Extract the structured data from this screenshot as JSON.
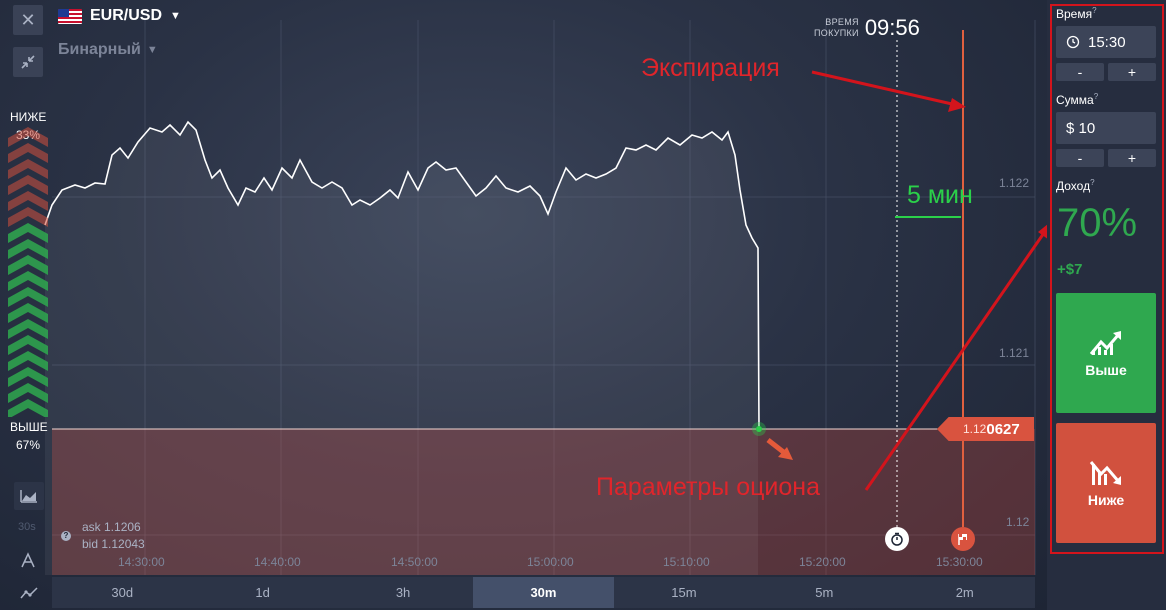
{
  "header": {
    "asset": "EUR/USD",
    "option_type": "Бинарный",
    "purchase_label_line1": "ВРЕМЯ",
    "purchase_label_line2": "ПОКУПКИ",
    "purchase_time": "09:56"
  },
  "icons": {
    "close": "close-icon",
    "collapse": "collapse-icon",
    "flag": "us-flag-icon",
    "timer": "stopwatch-icon",
    "finish": "finish-flag-icon"
  },
  "sentiment": {
    "down_label": "НИЖЕ",
    "down_pct": "33%",
    "up_label": "ВЫШЕ",
    "up_pct": "67%",
    "down_share": 0.33,
    "up_share": 0.67
  },
  "chart": {
    "price_labels": [
      "1.122",
      "1.121",
      "1.12"
    ],
    "current_price_prefix": "1.12",
    "current_price_suffix": "0627",
    "ask": "ask 1.1206",
    "bid": "bid 1.12043",
    "time_labels": [
      "14:30:00",
      "14:40:00",
      "14:50:00",
      "15:00:00",
      "15:10:00",
      "15:20:00",
      "15:30:00"
    ],
    "side_label": "30s"
  },
  "annotations": {
    "expiry": "Экспирация",
    "params": "Параметры оциона",
    "five_min": "5 мин"
  },
  "timeframes": [
    "30d",
    "1d",
    "3h",
    "30m",
    "15m",
    "5m",
    "2m"
  ],
  "active_timeframe": "30m",
  "panel": {
    "time_label": "Время",
    "time_value": "15:30",
    "amount_label": "Сумма",
    "amount_value": "$ 10",
    "income_label": "Доход",
    "income_pct": "70%",
    "income_amount": "+$7",
    "up_button": "Выше",
    "down_button": "Ниже",
    "minus": "-",
    "plus": "+",
    "help_mark": "?"
  },
  "colors": {
    "up": "#2fa84f",
    "down": "#d1513e",
    "annotation_red": "#e0252b",
    "annotation_green": "#2bd14a"
  }
}
